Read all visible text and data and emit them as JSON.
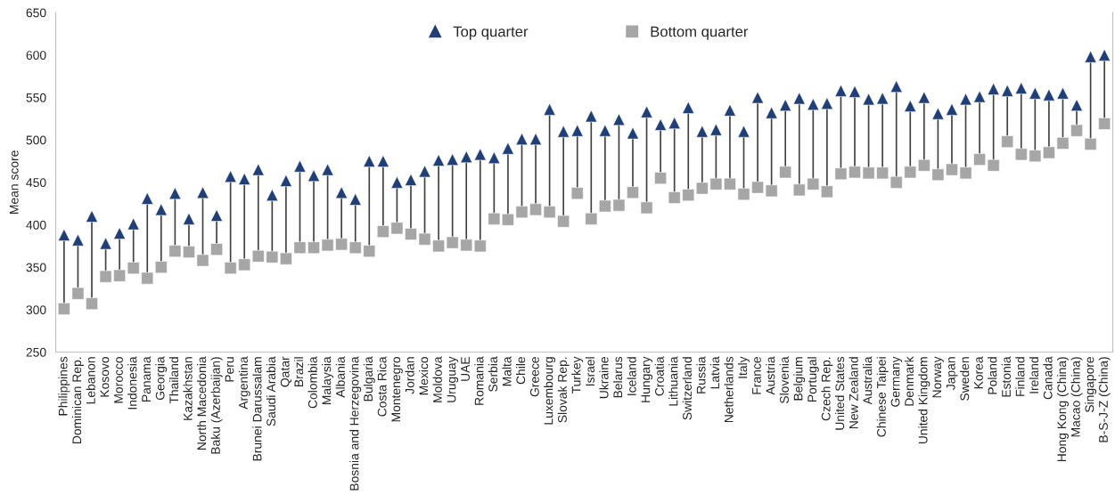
{
  "chart_data": {
    "type": "scatter",
    "ylabel": "Mean score",
    "categories": [
      "Philippines",
      "Dominican Rep.",
      "Lebanon",
      "Kosovo",
      "Morocco",
      "Indonesia",
      "Panama",
      "Georgia",
      "Thailand",
      "Kazakhstan",
      "North Macedonia",
      "Baku (Azerbaijan)",
      "Peru",
      "Argentina",
      "Brunei Darussalam",
      "Saudi Arabia",
      "Qatar",
      "Brazil",
      "Colombia",
      "Malaysia",
      "Albania",
      "Bosnia and Herzegovina",
      "Bulgaria",
      "Costa Rica",
      "Montenegro",
      "Jordan",
      "Mexico",
      "Moldova",
      "Uruguay",
      "UAE",
      "Romania",
      "Serbia",
      "Malta",
      "Chile",
      "Greece",
      "Luxembourg",
      "Slovak Rep.",
      "Turkey",
      "Israel",
      "Ukraine",
      "Belarus",
      "Iceland",
      "Hungary",
      "Croatia",
      "Lithuania",
      "Switzerland",
      "Russia",
      "Latvia",
      "Netherlands",
      "Italy",
      "France",
      "Austria",
      "Slovenia",
      "Belgium",
      "Portugal",
      "Czech Rep.",
      "United States",
      "New Zealand",
      "Australia",
      "Chinese Taipei",
      "Germany",
      "Denmark",
      "United Kingdom",
      "Norway",
      "Japan",
      "Sweden",
      "Korea",
      "Poland",
      "Estonia",
      "Finland",
      "Ireland",
      "Canada",
      "Hong Kong (China)",
      "Macao (China)",
      "Singapore",
      "B-S-J-Z (China)"
    ],
    "series": [
      {
        "name": "Top quarter",
        "color": "#203f77",
        "marker": "triangle",
        "values": [
          388,
          382,
          410,
          378,
          390,
          401,
          431,
          418,
          437,
          407,
          438,
          411,
          457,
          454,
          465,
          435,
          452,
          469,
          458,
          465,
          438,
          430,
          475,
          475,
          450,
          453,
          463,
          476,
          477,
          480,
          483,
          479,
          490,
          501,
          501,
          536,
          510,
          511,
          528,
          511,
          524,
          508,
          533,
          518,
          520,
          538,
          510,
          512,
          535,
          510,
          550,
          532,
          541,
          549,
          542,
          543,
          558,
          557,
          548,
          549,
          563,
          540,
          550,
          531,
          536,
          548,
          551,
          560,
          558,
          561,
          555,
          553,
          555,
          541,
          598,
          600
        ]
      },
      {
        "name": "Bottom quarter",
        "color": "#a6a6a6",
        "marker": "square",
        "values": [
          301,
          319,
          307,
          339,
          340,
          349,
          337,
          350,
          369,
          368,
          358,
          371,
          349,
          353,
          363,
          362,
          360,
          373,
          373,
          376,
          377,
          373,
          369,
          392,
          396,
          389,
          383,
          375,
          379,
          376,
          375,
          407,
          406,
          415,
          418,
          415,
          404,
          437,
          407,
          422,
          423,
          438,
          420,
          455,
          432,
          435,
          443,
          448,
          448,
          436,
          444,
          440,
          462,
          441,
          448,
          439,
          460,
          462,
          461,
          461,
          450,
          462,
          470,
          459,
          465,
          461,
          477,
          470,
          498,
          483,
          481,
          485,
          496,
          511,
          495,
          519
        ]
      }
    ],
    "ylim": [
      250,
      650
    ],
    "yticks": [
      250,
      300,
      350,
      400,
      450,
      500,
      550,
      600,
      650
    ],
    "grid": false,
    "legend": "top"
  }
}
